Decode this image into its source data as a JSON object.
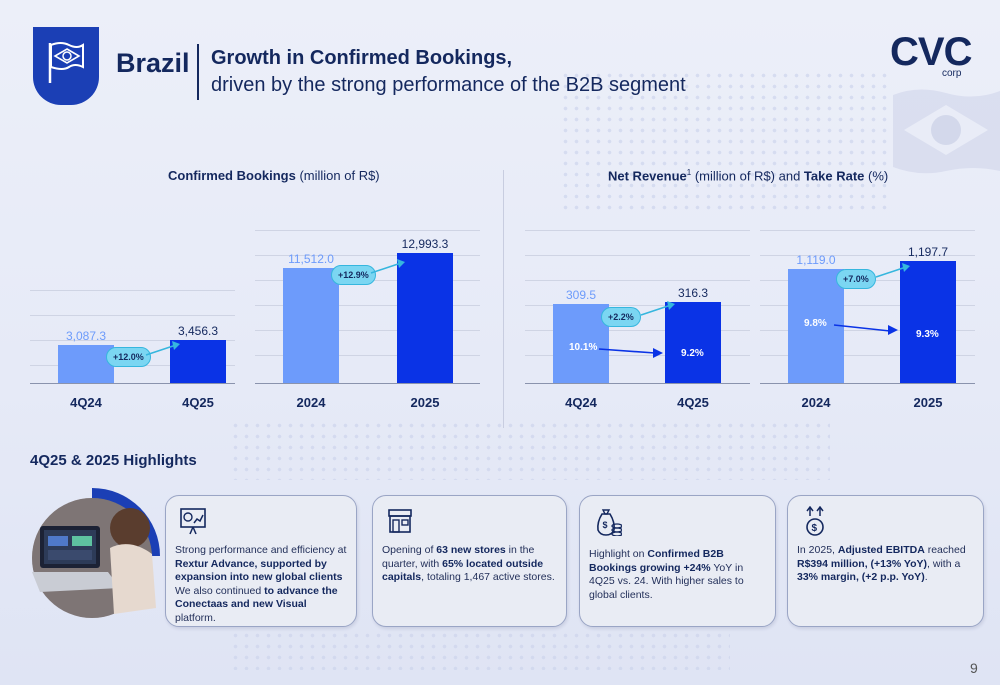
{
  "header": {
    "country": "Brazil",
    "title_line1": "Growth in Confirmed Bookings,",
    "title_line2": "driven by the strong performance of the B2B segment",
    "logo_text": "CVC",
    "logo_sub": "corp",
    "flag_icon": "brazil-flag-icon"
  },
  "chart_left": {
    "title_bold": "Confirmed Bookings",
    "title_rest": " (million of R$)"
  },
  "chart_right": {
    "title_bold": "Net Revenue",
    "title_sup": "1",
    "title_mid": " (million of R$) and ",
    "title_bold2": "Take Rate",
    "title_rest": " (%)"
  },
  "chart_data": [
    {
      "type": "bar",
      "title": "Confirmed Bookings (million of R$)",
      "categories": [
        "4Q24",
        "4Q25"
      ],
      "values": [
        3087.3,
        3456.3
      ],
      "labels": [
        "3,087.3",
        "3,456.3"
      ],
      "growth": "+12.0%"
    },
    {
      "type": "bar",
      "title": "Confirmed Bookings (million of R$)",
      "categories": [
        "2024",
        "2025"
      ],
      "values": [
        11512.0,
        12993.3
      ],
      "labels": [
        "11,512.0",
        "12,993.3"
      ],
      "growth": "+12.9%"
    },
    {
      "type": "bar",
      "title": "Net Revenue (million of R$) and Take Rate (%)",
      "categories": [
        "4Q24",
        "4Q25"
      ],
      "values": [
        309.5,
        316.3
      ],
      "labels": [
        "309.5",
        "316.3"
      ],
      "take_rate": [
        "10.1%",
        "9.2%"
      ],
      "growth": "+2.2%"
    },
    {
      "type": "bar",
      "title": "Net Revenue (million of R$) and Take Rate (%)",
      "categories": [
        "2024",
        "2025"
      ],
      "values": [
        1119.0,
        1197.7
      ],
      "labels": [
        "1,119.0",
        "1,197.7"
      ],
      "take_rate": [
        "9.8%",
        "9.3%"
      ],
      "growth": "+7.0%"
    }
  ],
  "highlights": {
    "title": "4Q25 & 2025 Highlights",
    "cards": [
      {
        "icon": "presentation-chart-icon",
        "html": "Strong performance and efficiency at <b>Rextur Advance, supported by expansion into new global clients</b> We also continued <b>to advance the Conectaas and new Visual</b> platform."
      },
      {
        "icon": "store-icon",
        "html": "Opening of <b>63 new stores</b> in the quarter, with <b>65% located outside capitals</b>, totaling 1,467 active stores."
      },
      {
        "icon": "money-bag-icon",
        "html": "Highlight on <b>Confirmed B2B Bookings growing +24%</b> YoY in 4Q25 vs. 24. With higher sales to global clients."
      },
      {
        "icon": "dollar-up-icon",
        "html": "In 2025, <b>Adjusted EBITDA</b> reached <b>R$394 million, (+13% YoY)</b>, with a <b>33% margin, (+2 p.p. YoY)</b>."
      }
    ]
  },
  "page_number": "9"
}
